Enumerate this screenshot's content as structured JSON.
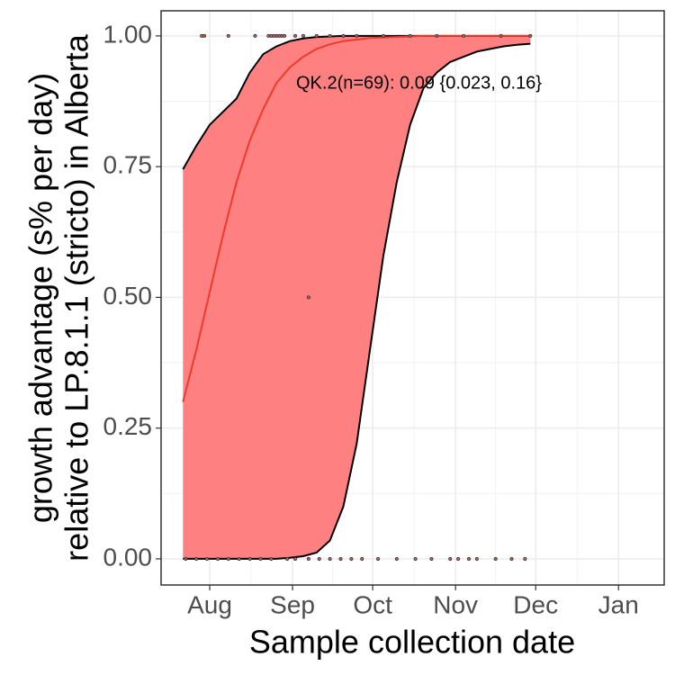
{
  "chart_data": {
    "type": "line",
    "annotation": "QK.2(n=69): 0.09 {0.023, 0.16}",
    "x_label": "Sample collection date",
    "y_label": [
      "growth advantage (s% per day)",
      "relative to LP.8.1.1 (stricto) in Alberta"
    ],
    "x": [
      203,
      208,
      213,
      218,
      223,
      228,
      233,
      238,
      243,
      248,
      253,
      258,
      263,
      268,
      273,
      278,
      283,
      288,
      293,
      298,
      303,
      308,
      313,
      318,
      323,
      328,
      333
    ],
    "fit": [
      0.3,
      0.4,
      0.51,
      0.62,
      0.72,
      0.8,
      0.86,
      0.91,
      0.94,
      0.96,
      0.975,
      0.984,
      0.99,
      0.993,
      0.996,
      0.997,
      0.998,
      0.999,
      1,
      1,
      1,
      1,
      1,
      1,
      1,
      1,
      1
    ],
    "upper": [
      0.745,
      0.79,
      0.83,
      0.855,
      0.88,
      0.93,
      0.965,
      0.98,
      0.99,
      0.995,
      0.998,
      0.999,
      1,
      1,
      1,
      1,
      1,
      1,
      1,
      1,
      1,
      1,
      1,
      1,
      1,
      1,
      1
    ],
    "lower": [
      0,
      0,
      0,
      0,
      0,
      0,
      0,
      0,
      0.002,
      0.005,
      0.012,
      0.035,
      0.1,
      0.22,
      0.4,
      0.58,
      0.72,
      0.83,
      0.9,
      0.93,
      0.95,
      0.96,
      0.97,
      0.975,
      0.98,
      0.983,
      0.985
    ],
    "color": "#ee3a2c",
    "ribbon_color": "#ff8080",
    "points": {
      "x": [
        210,
        211,
        220,
        230,
        235,
        236,
        237,
        238,
        239,
        240,
        241,
        245,
        248,
        253,
        258,
        263,
        268,
        278,
        288,
        298,
        308,
        322,
        333,
        204,
        208,
        212,
        216,
        220,
        224,
        228,
        232,
        236,
        242,
        245,
        250,
        254,
        258,
        262,
        266,
        270,
        276,
        283,
        290,
        296,
        303,
        306,
        310,
        313,
        320,
        326,
        331,
        250
      ],
      "y": [
        1,
        1,
        1,
        1,
        1,
        1,
        1,
        1,
        1,
        1,
        1,
        1,
        1,
        1,
        1,
        1,
        1,
        1,
        1,
        1,
        1,
        1,
        1,
        0,
        0,
        0,
        0,
        0,
        0,
        0,
        0,
        0,
        0,
        0,
        0,
        0,
        0,
        0,
        0,
        0,
        0,
        0,
        0,
        0,
        0,
        0,
        0,
        0,
        0,
        0,
        0,
        0.5
      ]
    },
    "xlim": [
      194.8,
      383.1
    ],
    "ylim": [
      -0.05,
      1.048
    ],
    "xticks": [
      {
        "value": 213,
        "label": "Aug"
      },
      {
        "value": 244,
        "label": "Sep"
      },
      {
        "value": 274,
        "label": "Oct"
      },
      {
        "value": 305,
        "label": "Nov"
      },
      {
        "value": 335,
        "label": "Dec"
      },
      {
        "value": 366,
        "label": "Jan"
      }
    ],
    "yticks": [
      {
        "value": 0,
        "label": "0.00"
      },
      {
        "value": 0.25,
        "label": "0.25"
      },
      {
        "value": 0.5,
        "label": "0.50"
      },
      {
        "value": 0.75,
        "label": "0.75"
      },
      {
        "value": 1,
        "label": "1.00"
      }
    ],
    "grid": true
  }
}
